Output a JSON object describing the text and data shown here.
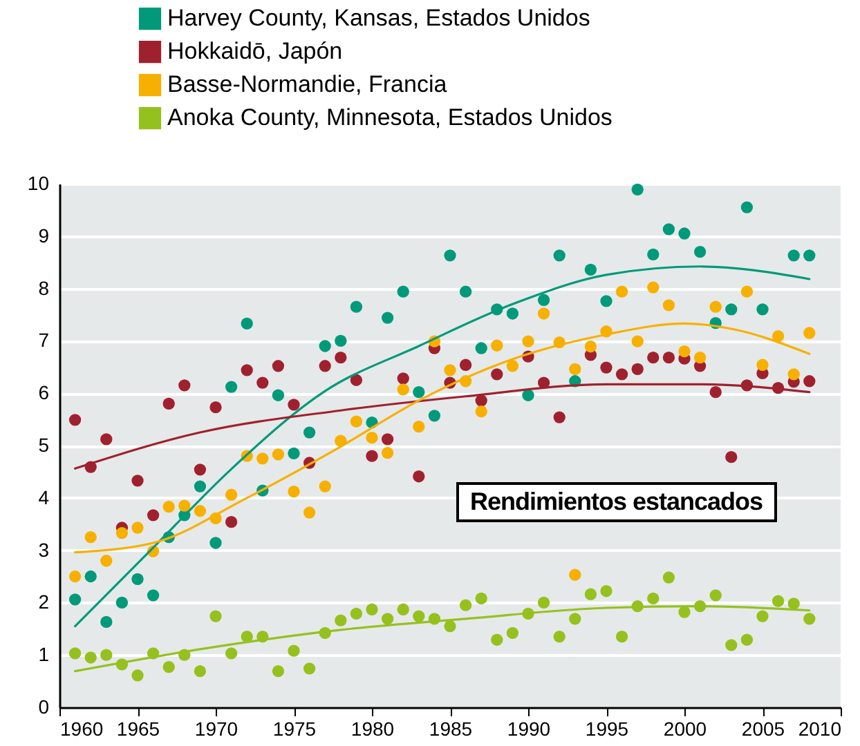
{
  "chart_data": {
    "type": "scatter",
    "xlim": [
      1960,
      2010
    ],
    "xticks": [
      1960,
      1965,
      1970,
      1975,
      1980,
      1985,
      1990,
      1995,
      2000,
      2005,
      2010
    ],
    "ylim": [
      0,
      10
    ],
    "yticks": [
      0,
      1,
      2,
      3,
      4,
      5,
      6,
      7,
      8,
      9,
      10
    ],
    "grid": "y",
    "legend": "top left",
    "marker": "circle",
    "annotations": [
      "Rendimientos estancados"
    ],
    "x": [
      1961,
      1962,
      1963,
      1964,
      1965,
      1966,
      1967,
      1968,
      1969,
      1970,
      1971,
      1972,
      1973,
      1974,
      1975,
      1976,
      1977,
      1978,
      1979,
      1980,
      1981,
      1982,
      1983,
      1984,
      1985,
      1986,
      1987,
      1988,
      1989,
      1990,
      1991,
      1992,
      1993,
      1994,
      1995,
      1996,
      1997,
      1998,
      1999,
      2000,
      2001,
      2002,
      2003,
      2004,
      2005,
      2006,
      2007,
      2008
    ],
    "series": [
      {
        "name": "Harvey County, Kansas, Estados Unidos",
        "color": "#009a7a",
        "values": [
          2.06,
          2.5,
          1.63,
          2.0,
          2.45,
          2.14,
          3.25,
          3.67,
          4.22,
          3.14,
          6.12,
          7.33,
          4.14,
          5.96,
          4.85,
          5.25,
          6.9,
          7.0,
          7.65,
          5.44,
          7.44,
          7.94,
          6.02,
          5.57,
          8.63,
          7.94,
          6.86,
          7.6,
          7.52,
          5.96,
          7.78,
          8.63,
          6.23,
          8.36,
          7.76,
          null,
          9.89,
          8.65,
          9.13,
          9.05,
          8.7,
          7.34,
          7.6,
          9.55,
          7.6,
          null,
          8.63,
          8.63
        ]
      },
      {
        "name": "Hokkaidō, Japón",
        "color": "#a0212e",
        "values": [
          5.49,
          4.59,
          5.12,
          3.43,
          4.33,
          3.67,
          5.8,
          6.15,
          4.54,
          5.73,
          3.54,
          6.44,
          6.2,
          6.52,
          5.78,
          4.67,
          6.52,
          6.68,
          6.25,
          4.8,
          5.12,
          6.28,
          4.41,
          6.86,
          6.2,
          6.54,
          5.86,
          6.36,
          null,
          6.7,
          6.2,
          5.54,
          null,
          6.73,
          6.49,
          6.36,
          6.46,
          6.68,
          6.68,
          6.66,
          6.52,
          6.02,
          4.78,
          6.15,
          6.38,
          6.1,
          6.22,
          6.23
        ]
      },
      {
        "name": "Basse-Normandie, Francia",
        "color": "#f7b000",
        "x": [
          1961,
          1962,
          1963,
          1964,
          1965,
          1966,
          1967,
          1968,
          1969,
          1970,
          1971,
          1972,
          1973,
          1974,
          1975,
          1976,
          1977,
          1978,
          1979,
          1980,
          1981,
          1982,
          1983,
          1984,
          1985,
          1986,
          1987,
          1988,
          1989,
          1990,
          1991,
          1992,
          1993,
          1993,
          1994,
          1995,
          1996,
          1997,
          1998,
          1999,
          2000,
          2001,
          2002,
          2004,
          2005,
          2006,
          2007,
          2008
        ],
        "values": [
          2.5,
          3.25,
          2.8,
          3.33,
          3.43,
          2.98,
          3.83,
          3.85,
          3.75,
          3.61,
          4.06,
          4.8,
          4.75,
          4.83,
          4.12,
          3.72,
          4.22,
          5.09,
          5.46,
          5.15,
          4.86,
          6.07,
          5.36,
          6.99,
          6.44,
          6.23,
          5.65,
          6.91,
          6.52,
          6.99,
          7.52,
          6.97,
          6.46,
          2.53,
          6.89,
          7.18,
          7.94,
          6.99,
          8.02,
          7.68,
          6.8,
          6.68,
          7.65,
          7.94,
          6.54,
          7.09,
          6.36,
          7.15
        ]
      },
      {
        "name": "Anoka County, Minnesota, Estados Unidos",
        "color": "#95c11f",
        "values": [
          1.03,
          0.95,
          1.0,
          0.82,
          0.61,
          1.03,
          0.77,
          1.0,
          0.69,
          1.74,
          1.03,
          1.35,
          1.35,
          0.69,
          1.08,
          0.74,
          1.42,
          1.66,
          1.79,
          1.87,
          1.69,
          1.87,
          1.74,
          1.69,
          1.55,
          1.95,
          2.08,
          1.29,
          1.42,
          1.79,
          2.0,
          1.35,
          1.69,
          2.16,
          2.22,
          1.35,
          1.93,
          2.08,
          2.48,
          1.82,
          1.93,
          2.14,
          1.19,
          1.29,
          1.74,
          2.03,
          1.98,
          1.69
        ]
      },
      {
        "type": "line",
        "marker": "none",
        "color": "#009a7a",
        "x": [
          1961,
          1966,
          1971,
          1977,
          1983,
          1989,
          1995,
          2001,
          2008
        ],
        "values": [
          1.55,
          3.05,
          4.55,
          6.04,
          6.9,
          7.7,
          8.26,
          8.42,
          8.18
        ]
      },
      {
        "type": "line",
        "marker": "none",
        "color": "#a0212e",
        "x": [
          1961,
          1969,
          1978,
          1986,
          1995,
          2001,
          2008
        ],
        "values": [
          4.56,
          5.25,
          5.67,
          5.94,
          6.17,
          6.17,
          6.02
        ]
      },
      {
        "type": "line",
        "marker": "none",
        "color": "#f7b000",
        "x": [
          1961,
          1966,
          1972,
          1978,
          1983,
          1989,
          1995,
          2000,
          2003,
          2008
        ],
        "values": [
          2.96,
          3.14,
          4.0,
          4.98,
          5.86,
          6.65,
          7.12,
          7.33,
          7.23,
          6.75
        ]
      },
      {
        "type": "line",
        "marker": "none",
        "color": "#95c11f",
        "x": [
          1961,
          1969,
          1978,
          1986,
          1995,
          2001,
          2008
        ],
        "values": [
          0.69,
          1.11,
          1.48,
          1.69,
          1.9,
          1.93,
          1.85
        ]
      }
    ]
  }
}
